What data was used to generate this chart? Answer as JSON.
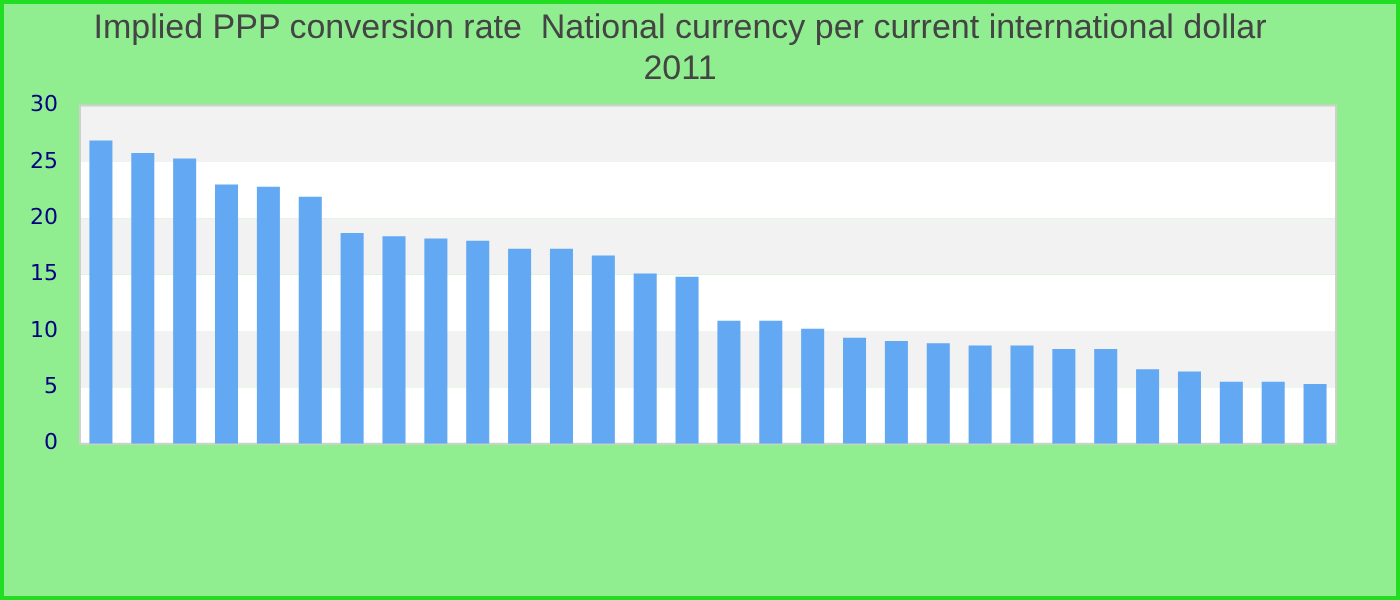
{
  "chart_data": {
    "type": "bar",
    "title": [
      "Implied PPP conversion rate  National currency per current international dollar",
      "2011"
    ],
    "categories": [
      null,
      null,
      null,
      null,
      null,
      null,
      null,
      null,
      null,
      null,
      null,
      null,
      null,
      null,
      null,
      null,
      null,
      null,
      null,
      null,
      null,
      null,
      null,
      null,
      null,
      null,
      null,
      null,
      null,
      null
    ],
    "values": [
      26.9,
      25.8,
      25.3,
      23.0,
      22.8,
      21.9,
      18.7,
      18.4,
      18.2,
      18.0,
      17.3,
      17.3,
      16.7,
      15.1,
      14.8,
      10.9,
      10.9,
      10.2,
      9.4,
      9.1,
      8.9,
      8.7,
      8.7,
      8.4,
      8.4,
      6.6,
      6.4,
      5.5,
      5.5,
      5.3
    ],
    "color": "#62a8f2",
    "ylim": [
      0,
      30
    ],
    "yticks": [
      0,
      5,
      10,
      15,
      20,
      25,
      30
    ],
    "legend": false
  }
}
